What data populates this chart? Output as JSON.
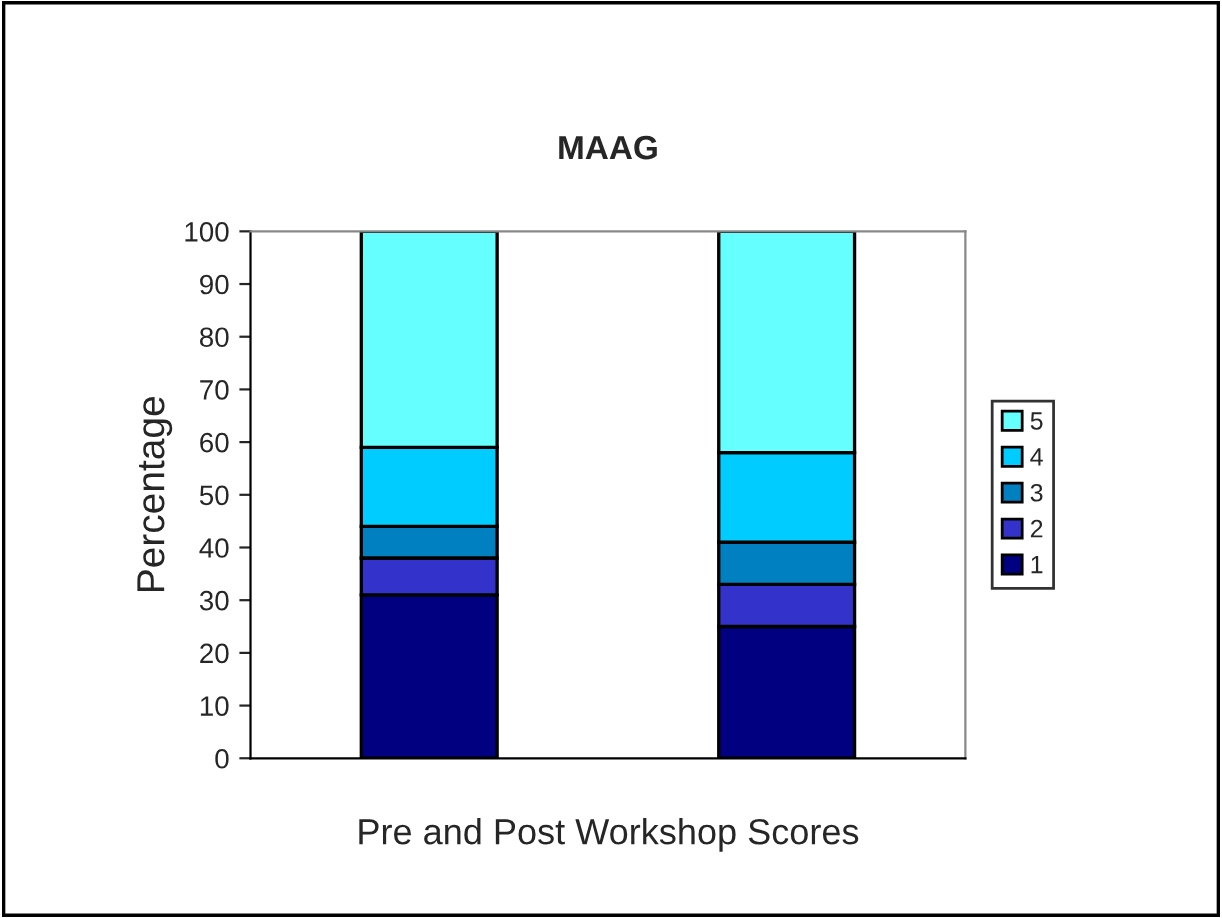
{
  "chart_data": {
    "type": "bar",
    "title": "MAAG",
    "xlabel": "Pre and Post Workshop Scores",
    "ylabel": "Percentage",
    "categories": [
      null,
      null
    ],
    "stacked": true,
    "series": [
      {
        "name": "1",
        "color": "#000080",
        "values": [
          31,
          25
        ]
      },
      {
        "name": "2",
        "color": "#3333cc",
        "values": [
          7,
          8
        ]
      },
      {
        "name": "3",
        "color": "#0080c0",
        "values": [
          6,
          8
        ]
      },
      {
        "name": "4",
        "color": "#00ccff",
        "values": [
          15,
          17
        ]
      },
      {
        "name": "5",
        "color": "#66ffff",
        "values": [
          41,
          42
        ]
      }
    ],
    "ylim": [
      0,
      100
    ],
    "yticks": [
      0,
      10,
      20,
      30,
      40,
      50,
      60,
      70,
      80,
      90,
      100
    ],
    "grid": false,
    "legend": "right"
  }
}
